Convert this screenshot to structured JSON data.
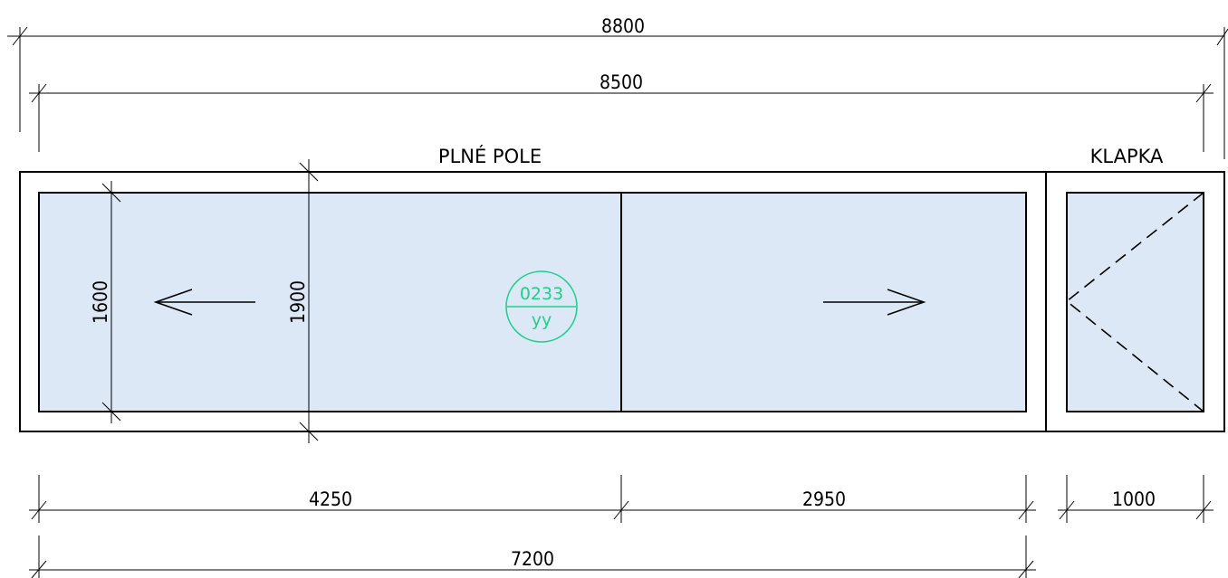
{
  "dimensions": {
    "overall_outer": "8800",
    "overall_inner": "8500",
    "segment_left": "4250",
    "segment_middle": "2950",
    "segment_right": "1000",
    "combined_bottom": "7200",
    "height_inner": "1600",
    "height_outer": "1900"
  },
  "labels": {
    "fixed_panel": "PLNÉ POLE",
    "flap": "KLAPKA"
  },
  "tag": {
    "code": "0233",
    "sub": "yy",
    "color": "#1ed08a"
  },
  "colors": {
    "glass": "#dde8f7",
    "line": "#000000"
  }
}
